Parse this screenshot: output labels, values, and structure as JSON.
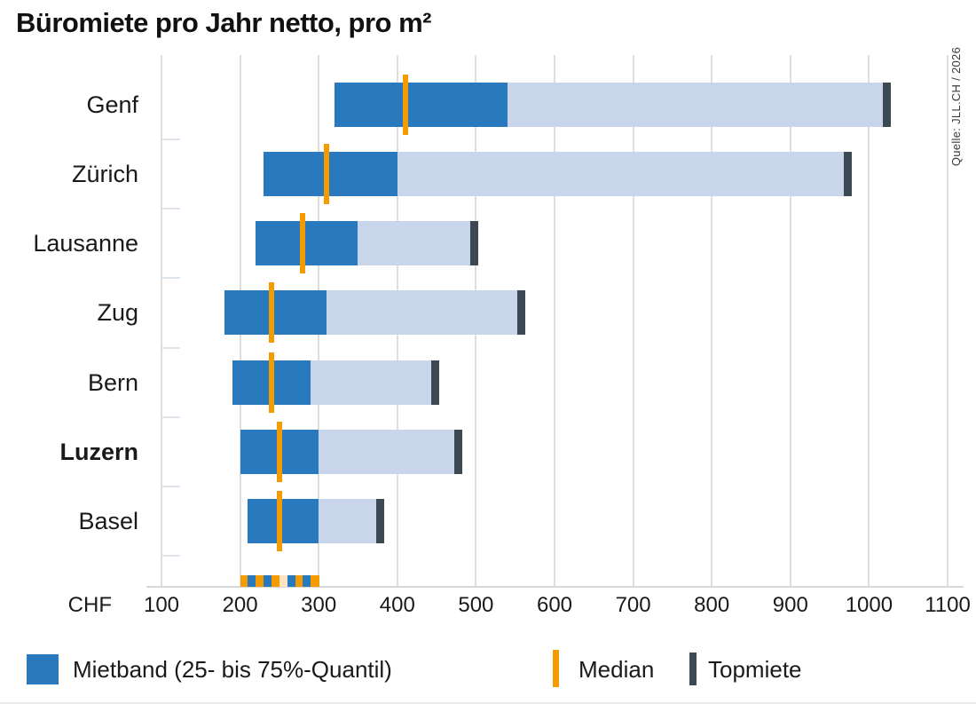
{
  "title": "Büromiete pro Jahr netto, pro m²",
  "source": "Quelle: JLL.CH / 2026",
  "axis": {
    "unit_label": "CHF"
  },
  "legend": {
    "mietband": "Mietband (25- bis 75%-Quantil)",
    "median": "Median",
    "topmiete": "Topmiete"
  },
  "colors": {
    "band_blue": "#2879BD",
    "top_band_light_blue": "#C9D5EA",
    "median_orange": "#F49B00",
    "topmiete_dark": "#3C4952",
    "stripe_cream": "#FBE3C4",
    "gridline_gray": "#DEDEDE",
    "text": "#1A1A1A"
  },
  "chart_data": {
    "type": "bar",
    "subtype": "horizontal-range-bars",
    "title": "Büromiete pro Jahr netto, pro m²",
    "xlabel": "CHF",
    "ylabel": "",
    "x_min": 100,
    "x_max": 1100,
    "x_ticks": [
      100,
      200,
      300,
      400,
      500,
      600,
      700,
      800,
      900,
      1000,
      1100
    ],
    "grid": true,
    "legend_position": "bottom",
    "categories": [
      "Genf",
      "Zürich",
      "Lausanne",
      "Zug",
      "Bern",
      "Luzern",
      "Basel"
    ],
    "series": [
      {
        "city": "Genf",
        "q25": 320,
        "median": 410,
        "q75": 540,
        "topmiete": 1020,
        "bold": false
      },
      {
        "city": "Zürich",
        "q25": 230,
        "median": 310,
        "q75": 400,
        "topmiete": 970,
        "bold": false
      },
      {
        "city": "Lausanne",
        "q25": 220,
        "median": 280,
        "q75": 350,
        "topmiete": 495,
        "bold": false
      },
      {
        "city": "Zug",
        "q25": 180,
        "median": 240,
        "q75": 310,
        "topmiete": 555,
        "bold": false
      },
      {
        "city": "Bern",
        "q25": 190,
        "median": 240,
        "q75": 290,
        "topmiete": 445,
        "bold": false
      },
      {
        "city": "Luzern",
        "q25": 200,
        "median": 250,
        "q75": 300,
        "topmiete": 475,
        "bold": true
      },
      {
        "city": "Basel",
        "q25": 210,
        "median": 250,
        "q75": 300,
        "topmiete": 375,
        "bold": false
      }
    ],
    "overflow_stripe": {
      "x_from": 200,
      "x_to": 300,
      "pattern": [
        "orange",
        "blue",
        "orange",
        "blue",
        "orange",
        "cream",
        "blue",
        "orange",
        "blue",
        "orange"
      ]
    },
    "legend": [
      "Mietband (25- bis 75%-Quantil)",
      "Median",
      "Topmiete"
    ]
  }
}
